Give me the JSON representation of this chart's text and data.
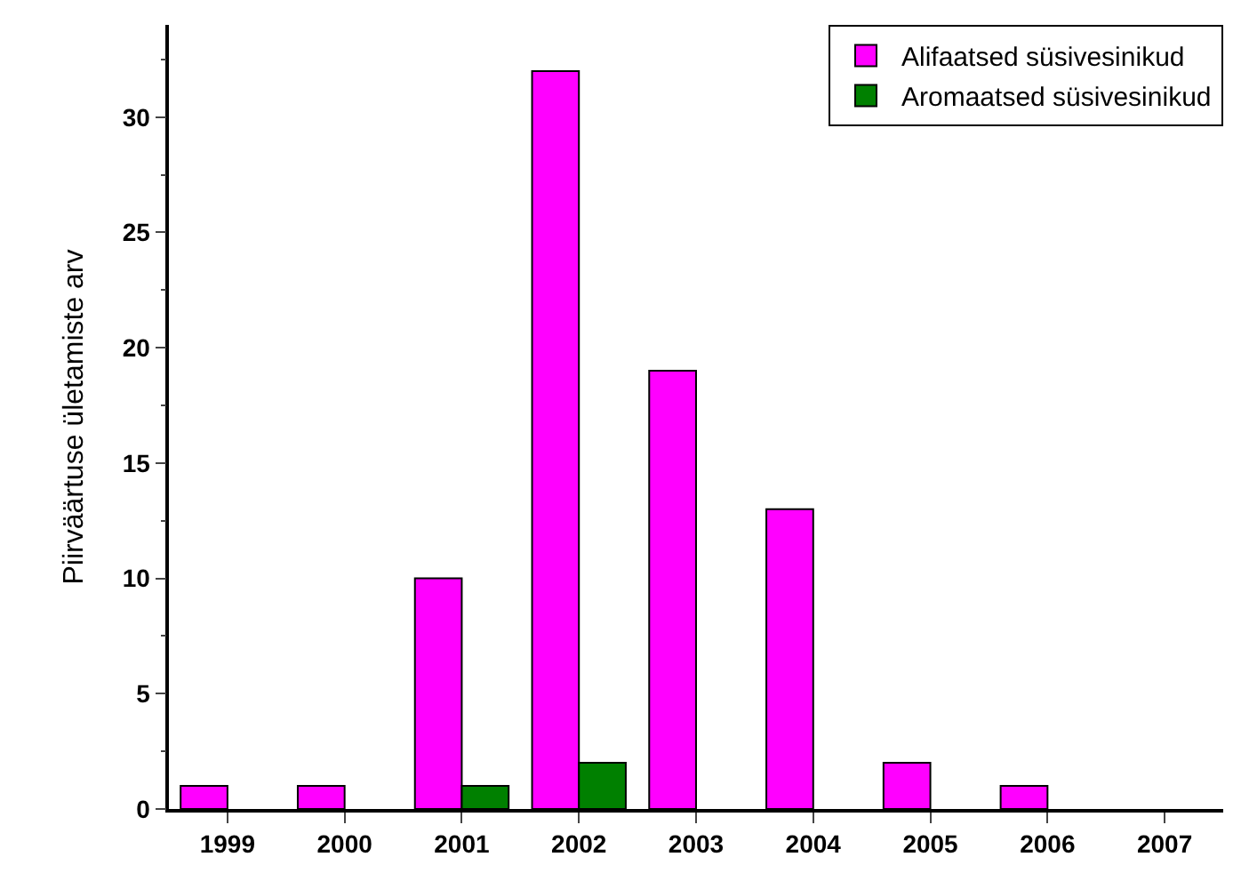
{
  "chart_data": {
    "type": "bar",
    "ylabel": "Piirväärtuse ületamiste arv",
    "categories": [
      "1999",
      "2000",
      "2001",
      "2002",
      "2003",
      "2004",
      "2005",
      "2006",
      "2007"
    ],
    "series": [
      {
        "name": "Alifaatsed süsivesinikud",
        "color": "#ff00ff",
        "values": [
          1,
          1,
          10,
          32,
          19,
          13,
          2,
          1,
          null
        ]
      },
      {
        "name": "Aromaatsed süsivesinikud",
        "color": "#008000",
        "values": [
          null,
          null,
          1,
          2,
          null,
          null,
          null,
          null,
          null
        ]
      }
    ],
    "ylim": [
      0,
      34
    ],
    "yticks": [
      0,
      5,
      10,
      15,
      20,
      25,
      30
    ],
    "grid": false,
    "legend": "top right"
  }
}
